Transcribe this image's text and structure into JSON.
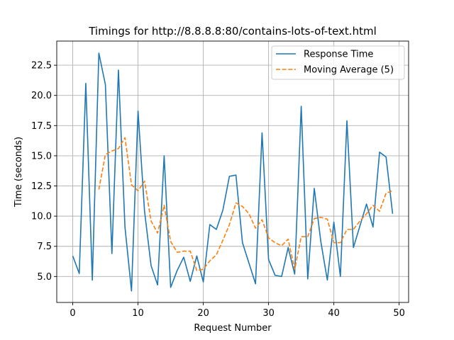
{
  "chart_data": {
    "type": "line",
    "title": "Timings for http://8.8.8.8:80/contains-lots-of-text.html",
    "xlabel": "Request Number",
    "ylabel": "Time (seconds)",
    "xlim": [
      -2.45,
      51.45
    ],
    "ylim": [
      2.85,
      24.5
    ],
    "xticks": [
      0,
      10,
      20,
      30,
      40,
      50
    ],
    "yticks": [
      5.0,
      7.5,
      10.0,
      12.5,
      15.0,
      17.5,
      20.0,
      22.5
    ],
    "xtick_labels": [
      "0",
      "10",
      "20",
      "30",
      "40",
      "50"
    ],
    "ytick_labels": [
      "5.0",
      "7.5",
      "10.0",
      "12.5",
      "15.0",
      "17.5",
      "20.0",
      "22.5"
    ],
    "grid": true,
    "legend": "top-right",
    "series": [
      {
        "name": "Response Time",
        "color": "#1f77b4",
        "style": "solid",
        "x": [
          0,
          1,
          2,
          3,
          4,
          5,
          6,
          7,
          8,
          9,
          10,
          11,
          12,
          13,
          14,
          15,
          16,
          17,
          18,
          19,
          20,
          21,
          22,
          23,
          24,
          25,
          26,
          27,
          28,
          29,
          30,
          31,
          32,
          33,
          34,
          35,
          36,
          37,
          38,
          39,
          40,
          41,
          42,
          43,
          44,
          45,
          46,
          47,
          48,
          49
        ],
        "values": [
          6.7,
          5.25,
          21.0,
          4.7,
          23.5,
          20.9,
          6.9,
          22.1,
          9.1,
          3.8,
          18.7,
          10.4,
          5.9,
          4.3,
          15.0,
          4.1,
          5.5,
          6.6,
          4.6,
          6.7,
          4.55,
          9.3,
          8.9,
          10.5,
          13.3,
          13.4,
          7.8,
          6.1,
          4.4,
          16.9,
          6.4,
          5.1,
          5.0,
          7.4,
          5.2,
          19.1,
          4.8,
          12.3,
          7.9,
          4.7,
          9.5,
          5.0,
          17.9,
          7.4,
          9.2,
          11.0,
          9.1,
          15.3,
          14.9,
          10.2
        ]
      },
      {
        "name": "Moving Average (5)",
        "color": "#ff7f0e",
        "style": "dashed",
        "x": [
          4,
          5,
          6,
          7,
          8,
          9,
          10,
          11,
          12,
          13,
          14,
          15,
          16,
          17,
          18,
          19,
          20,
          21,
          22,
          23,
          24,
          25,
          26,
          27,
          28,
          29,
          30,
          31,
          32,
          33,
          34,
          35,
          36,
          37,
          38,
          39,
          40,
          41,
          42,
          43,
          44,
          45,
          46,
          47,
          48,
          49
        ],
        "values": [
          12.2,
          15.1,
          15.4,
          15.6,
          16.5,
          12.6,
          12.1,
          12.9,
          9.6,
          8.6,
          10.9,
          7.9,
          7.0,
          7.1,
          7.1,
          5.5,
          5.6,
          6.3,
          6.8,
          8.0,
          9.3,
          11.1,
          10.8,
          10.2,
          9.0,
          9.7,
          8.2,
          7.8,
          7.55,
          8.1,
          5.6,
          8.3,
          8.3,
          9.8,
          9.9,
          9.75,
          7.8,
          7.8,
          8.9,
          8.9,
          9.6,
          10.2,
          10.9,
          10.4,
          11.9,
          12.1
        ]
      }
    ]
  }
}
